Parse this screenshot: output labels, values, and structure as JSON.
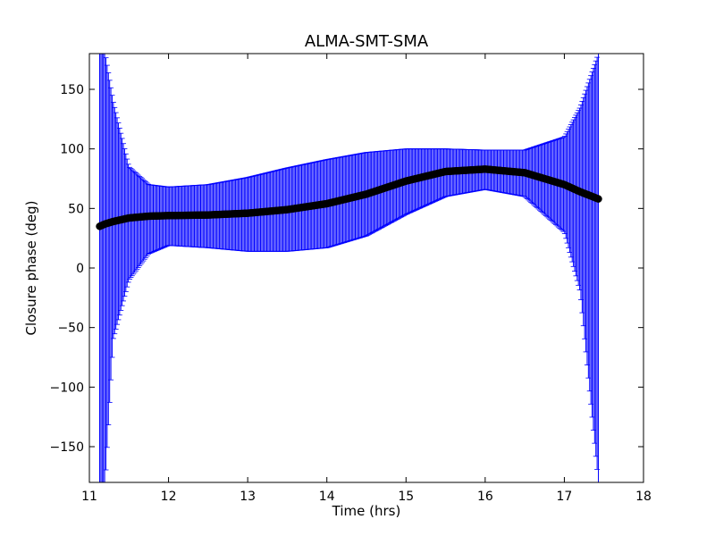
{
  "chart_data": {
    "type": "scatter",
    "title": "ALMA-SMT-SMA",
    "xlabel": "Time (hrs)",
    "ylabel": "Closure phase (deg)",
    "xlim": [
      11,
      18
    ],
    "ylim": [
      -180,
      180
    ],
    "x_ticks": [
      11,
      12,
      13,
      14,
      15,
      16,
      17,
      18
    ],
    "y_ticks": [
      -150,
      -100,
      -50,
      0,
      50,
      100,
      150
    ],
    "x_tick_labels": [
      "11",
      "12",
      "13",
      "14",
      "15",
      "16",
      "17",
      "18"
    ],
    "y_tick_labels": [
      "−150",
      "−100",
      "−50",
      "0",
      "50",
      "100",
      "150"
    ],
    "grid": false,
    "legend": "none",
    "colors": {
      "points": "#000000",
      "errorbars": "#0000ff",
      "axes": "#000000",
      "background": "#ffffff"
    },
    "series": [
      {
        "x": [
          11.13,
          11.2,
          11.3,
          11.5,
          11.75,
          12.0,
          12.5,
          13.0,
          13.5,
          14.0,
          14.5,
          15.0,
          15.5,
          16.0,
          16.5,
          17.0,
          17.2,
          17.43
        ],
        "y": [
          35,
          37,
          39,
          42,
          43.5,
          44,
          44.5,
          46,
          49,
          54,
          62,
          73,
          81,
          83,
          80,
          70,
          64,
          58
        ],
        "yerr_upper": [
          180,
          180,
          140,
          85,
          70,
          68,
          70,
          76,
          84,
          91,
          97,
          100,
          100,
          99,
          99,
          110,
          135,
          180
        ],
        "yerr_lower": [
          -180,
          -180,
          -60,
          -10,
          12,
          19,
          17,
          14,
          14,
          17,
          27,
          45,
          60,
          66,
          60,
          30,
          -20,
          -180
        ]
      }
    ]
  }
}
